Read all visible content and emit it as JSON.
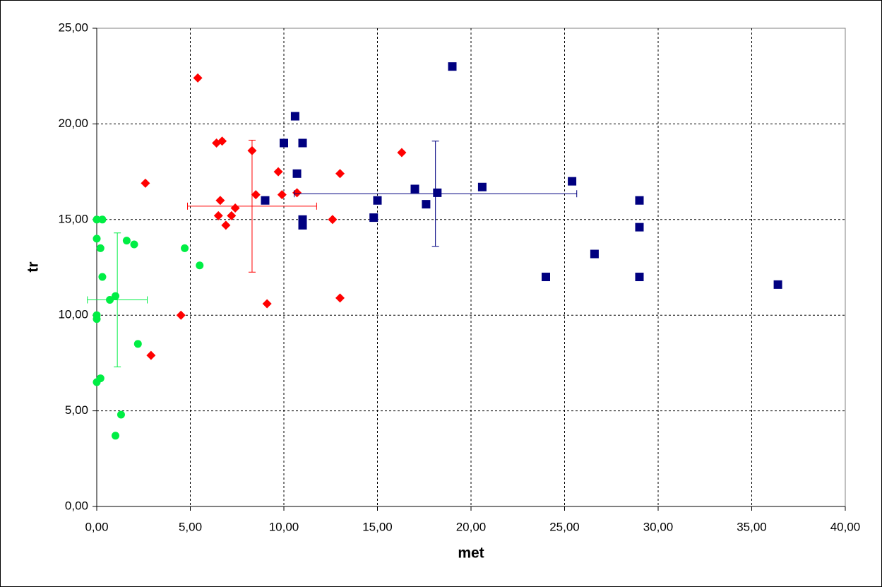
{
  "chart_data": {
    "type": "scatter",
    "x_label": "met",
    "y_label": "tr",
    "xlim": [
      0,
      40
    ],
    "ylim": [
      0,
      25
    ],
    "xticks": [
      {
        "value": 0,
        "label": "0,00"
      },
      {
        "value": 5,
        "label": "5,00"
      },
      {
        "value": 10,
        "label": "10,00"
      },
      {
        "value": 15,
        "label": "15,00"
      },
      {
        "value": 20,
        "label": "20,00"
      },
      {
        "value": 25,
        "label": "25,00"
      },
      {
        "value": 30,
        "label": "30,00"
      },
      {
        "value": 35,
        "label": "35,00"
      },
      {
        "value": 40,
        "label": "40,00"
      }
    ],
    "yticks": [
      {
        "value": 0,
        "label": "0,00"
      },
      {
        "value": 5,
        "label": "5,00"
      },
      {
        "value": 10,
        "label": "10,00"
      },
      {
        "value": 15,
        "label": "15,00"
      },
      {
        "value": 20,
        "label": "20,00"
      },
      {
        "value": 25,
        "label": "25,00"
      }
    ],
    "grid": true,
    "series": [
      {
        "color": "#00ee44",
        "marker": "circle",
        "x": [
          0.0,
          0.3,
          0.0,
          0.2,
          0.3,
          0.0,
          0.0,
          0.0,
          0.2,
          1.0,
          0.7,
          1.6,
          2.0,
          2.2,
          1.3,
          1.0,
          4.7,
          5.5
        ],
        "values": [
          15.0,
          15.0,
          14.0,
          13.5,
          12.0,
          10.0,
          9.8,
          6.5,
          6.7,
          11.0,
          10.8,
          13.9,
          13.7,
          8.5,
          4.8,
          3.7,
          13.5,
          12.6
        ],
        "error_bar": {
          "x": 1.1,
          "y": 10.8,
          "xerr": 1.6,
          "yerr": 3.5
        }
      },
      {
        "color": "#ff0000",
        "marker": "diamond",
        "x": [
          5.4,
          2.6,
          2.9,
          4.5,
          6.4,
          6.7,
          6.6,
          6.5,
          6.9,
          7.2,
          7.4,
          8.3,
          8.5,
          9.1,
          9.7,
          9.9,
          10.7,
          12.6,
          13.0,
          13.0,
          16.3
        ],
        "values": [
          22.4,
          16.9,
          7.9,
          10.0,
          19.0,
          19.1,
          16.0,
          15.2,
          14.7,
          15.2,
          15.6,
          18.6,
          16.3,
          10.6,
          17.5,
          16.3,
          16.4,
          15.0,
          17.4,
          10.9,
          18.5
        ],
        "error_bar": {
          "x": 8.3,
          "y": 15.7,
          "xerr": 3.45,
          "yerr": 3.45
        }
      },
      {
        "color": "#000080",
        "marker": "square",
        "x": [
          19.0,
          10.6,
          10.0,
          11.0,
          10.7,
          9.0,
          11.0,
          11.0,
          14.8,
          15.0,
          17.0,
          17.6,
          18.2,
          20.6,
          25.4,
          24.0,
          26.6,
          29.0,
          29.0,
          29.0,
          36.4
        ],
        "values": [
          23.0,
          20.4,
          19.0,
          19.0,
          17.4,
          16.0,
          15.0,
          14.7,
          15.1,
          16.0,
          16.6,
          15.8,
          16.4,
          16.7,
          17.0,
          12.0,
          13.2,
          16.0,
          14.6,
          12.0,
          11.6
        ],
        "error_bar": {
          "x": 18.1,
          "y": 16.35,
          "xerr": 7.55,
          "yerr": 2.75
        }
      }
    ]
  }
}
